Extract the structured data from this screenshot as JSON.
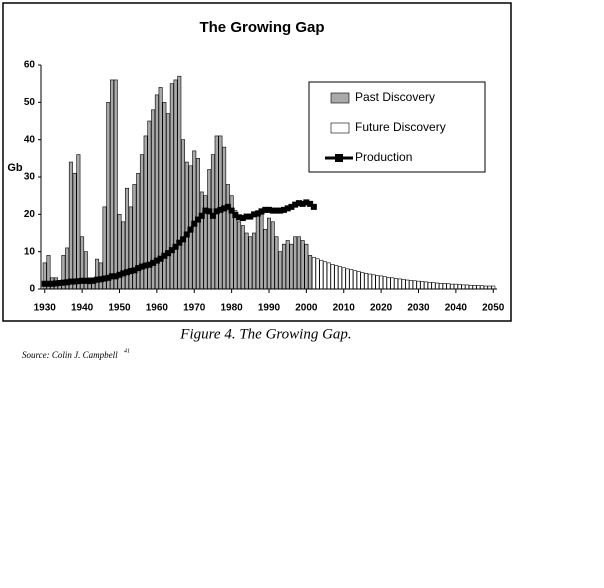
{
  "chart_data": {
    "type": "bar",
    "title": "The Growing Gap",
    "y_label": "Gb",
    "x": [
      1930,
      1931,
      1932,
      1933,
      1934,
      1935,
      1936,
      1937,
      1938,
      1939,
      1940,
      1941,
      1942,
      1943,
      1944,
      1945,
      1946,
      1947,
      1948,
      1949,
      1950,
      1951,
      1952,
      1953,
      1954,
      1955,
      1956,
      1957,
      1958,
      1959,
      1960,
      1961,
      1962,
      1963,
      1964,
      1965,
      1966,
      1967,
      1968,
      1969,
      1970,
      1971,
      1972,
      1973,
      1974,
      1975,
      1976,
      1977,
      1978,
      1979,
      1980,
      1981,
      1982,
      1983,
      1984,
      1985,
      1986,
      1987,
      1988,
      1989,
      1990,
      1991,
      1992,
      1993,
      1994,
      1995,
      1996,
      1997,
      1998,
      1999,
      2000,
      2001,
      2002,
      2003,
      2004,
      2005,
      2006,
      2007,
      2008,
      2009,
      2010,
      2011,
      2012,
      2013,
      2014,
      2015,
      2016,
      2017,
      2018,
      2019,
      2020,
      2021,
      2022,
      2023,
      2024,
      2025,
      2026,
      2027,
      2028,
      2029,
      2030,
      2031,
      2032,
      2033,
      2034,
      2035,
      2036,
      2037,
      2038,
      2039,
      2040,
      2041,
      2042,
      2043,
      2044,
      2045,
      2046,
      2047,
      2048,
      2049,
      2050
    ],
    "series": [
      {
        "name": "Past Discovery",
        "type": "bar",
        "color": "#a9a9a9",
        "values": [
          7,
          9,
          3,
          3,
          2,
          9,
          11,
          34,
          31,
          36,
          14,
          10,
          3,
          3,
          8,
          7,
          22,
          50,
          56,
          56,
          20,
          18,
          27,
          22,
          28,
          31,
          36,
          41,
          45,
          48,
          52,
          54,
          50,
          47,
          55,
          56,
          57,
          40,
          34,
          33,
          37,
          35,
          26,
          25,
          32,
          36,
          41,
          41,
          38,
          28,
          25,
          21,
          18,
          17,
          15,
          14,
          15,
          21,
          20,
          16,
          19,
          18,
          14,
          10,
          12,
          13,
          12,
          14,
          14,
          13,
          12,
          9,
          null,
          null,
          null,
          null,
          null,
          null,
          null,
          null,
          null,
          null,
          null,
          null,
          null,
          null,
          null,
          null,
          null,
          null,
          null,
          null,
          null,
          null,
          null,
          null,
          null,
          null,
          null,
          null,
          null,
          null,
          null,
          null,
          null,
          null,
          null,
          null,
          null,
          null,
          null,
          null,
          null,
          null,
          null,
          null,
          null,
          null,
          null,
          null,
          null
        ]
      },
      {
        "name": "Future Discovery",
        "type": "bar",
        "color": "#ffffff",
        "values": [
          null,
          null,
          null,
          null,
          null,
          null,
          null,
          null,
          null,
          null,
          null,
          null,
          null,
          null,
          null,
          null,
          null,
          null,
          null,
          null,
          null,
          null,
          null,
          null,
          null,
          null,
          null,
          null,
          null,
          null,
          null,
          null,
          null,
          null,
          null,
          null,
          null,
          null,
          null,
          null,
          null,
          null,
          null,
          null,
          null,
          null,
          null,
          null,
          null,
          null,
          null,
          null,
          null,
          null,
          null,
          null,
          null,
          null,
          null,
          null,
          null,
          null,
          null,
          null,
          null,
          null,
          null,
          null,
          null,
          null,
          null,
          null,
          8.5,
          8.1,
          7.7,
          7.3,
          7.0,
          6.6,
          6.3,
          6.0,
          5.7,
          5.4,
          5.2,
          4.9,
          4.7,
          4.4,
          4.2,
          4.0,
          3.8,
          3.6,
          3.5,
          3.3,
          3.1,
          3.0,
          2.8,
          2.7,
          2.6,
          2.4,
          2.3,
          2.2,
          2.1,
          2.0,
          1.9,
          1.8,
          1.7,
          1.6,
          1.5,
          1.5,
          1.4,
          1.3,
          1.3,
          1.2,
          1.1,
          1.1,
          1.0,
          1.0,
          0.9,
          0.9,
          0.8,
          0.8,
          0.8
        ]
      },
      {
        "name": "Production",
        "type": "line",
        "color": "#000000",
        "values": [
          1.4,
          1.4,
          1.4,
          1.5,
          1.6,
          1.7,
          1.8,
          2.0,
          2.0,
          2.1,
          2.2,
          2.2,
          2.1,
          2.2,
          2.5,
          2.6,
          2.8,
          3.0,
          3.4,
          3.4,
          3.8,
          4.2,
          4.5,
          4.8,
          5.0,
          5.6,
          6.0,
          6.3,
          6.5,
          7.0,
          7.6,
          8.1,
          8.9,
          9.6,
          10.4,
          11.3,
          12.4,
          13.3,
          14.6,
          15.9,
          17.5,
          18.6,
          19.6,
          21.0,
          20.8,
          19.6,
          20.8,
          21.2,
          21.6,
          22.0,
          21.0,
          19.8,
          19.2,
          19.0,
          19.4,
          19.4,
          20.0,
          20.2,
          20.8,
          21.2,
          21.2,
          21.0,
          21.0,
          21.0,
          21.2,
          21.6,
          22.0,
          22.6,
          23.0,
          22.8,
          23.2,
          22.8,
          22.0,
          null,
          null,
          null,
          null,
          null,
          null,
          null,
          null,
          null,
          null,
          null,
          null,
          null,
          null,
          null,
          null,
          null,
          null,
          null,
          null,
          null,
          null,
          null,
          null,
          null,
          null,
          null,
          null,
          null,
          null,
          null,
          null,
          null,
          null,
          null,
          null,
          null,
          null,
          null,
          null,
          null,
          null,
          null,
          null,
          null,
          null,
          null,
          null
        ]
      }
    ],
    "xlim": [
      1929,
      2051
    ],
    "xticks": [
      1930,
      1940,
      1950,
      1960,
      1970,
      1980,
      1990,
      2000,
      2010,
      2020,
      2030,
      2040,
      2050
    ],
    "ylim": [
      0,
      60
    ],
    "yticks": [
      0,
      10,
      20,
      30,
      40,
      50,
      60
    ],
    "legend": "top-right"
  },
  "caption": "Figure 4. The Growing Gap.",
  "source": {
    "text": "Source: Colin J. Campbell",
    "ref": "41"
  }
}
